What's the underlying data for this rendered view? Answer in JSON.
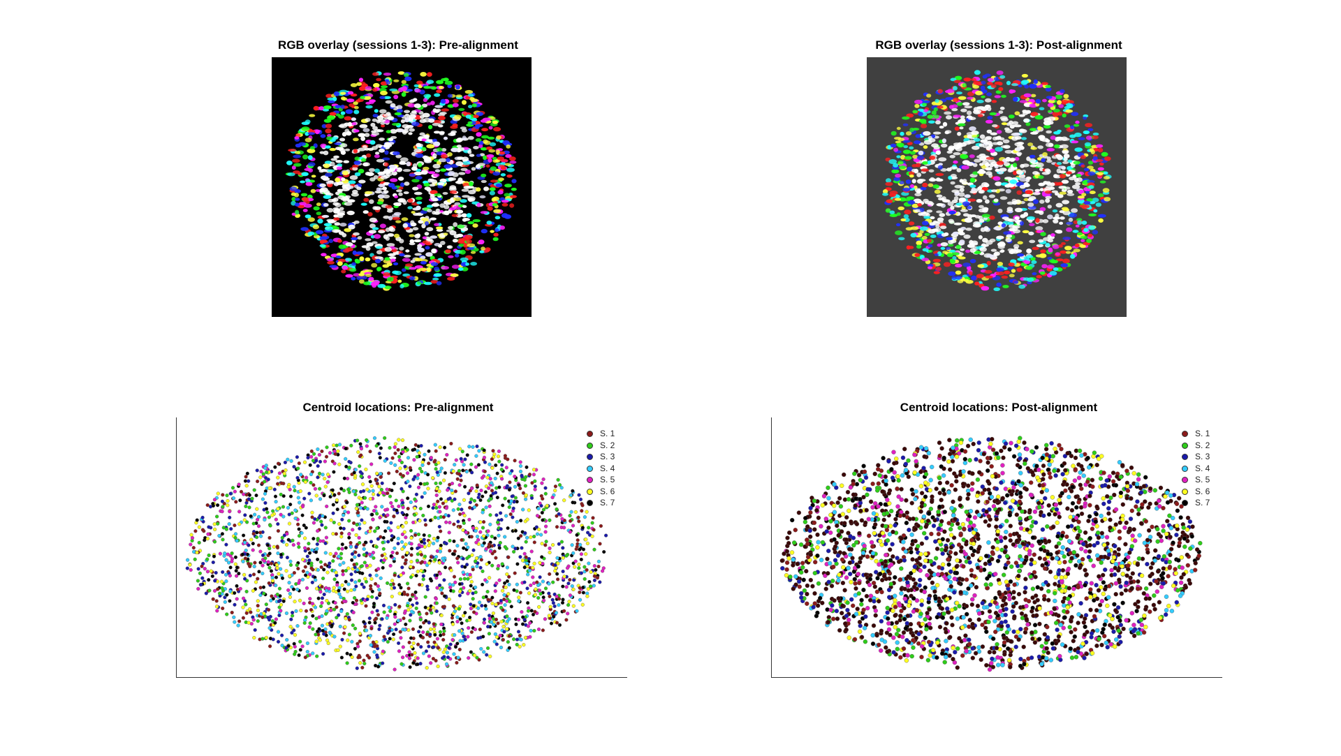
{
  "panels": {
    "rgb_pre_title": "RGB overlay (sessions 1-3): Pre-alignment",
    "rgb_post_title": "RGB overlay (sessions 1-3): Post-alignment",
    "centroid_pre_title": "Centroid locations: Pre-alignment",
    "centroid_post_title": "Centroid locations: Post-alignment"
  },
  "colors": {
    "rgb_pre_background": "#000000",
    "rgb_post_background": "#404040",
    "session_colors": [
      "#8b1a1a",
      "#2ecc1a",
      "#1a1aaa",
      "#33ccff",
      "#e020c0",
      "#ffff20",
      "#000000"
    ]
  },
  "legend": {
    "items": [
      "S. 1",
      "S. 2",
      "S. 3",
      "S. 4",
      "S. 5",
      "S. 6",
      "S. 7"
    ]
  },
  "chart_data": [
    {
      "type": "image",
      "title": "RGB overlay (sessions 1-3): Pre-alignment",
      "channels": [
        "red",
        "green",
        "blue"
      ],
      "background": "#000000"
    },
    {
      "type": "image",
      "title": "RGB overlay (sessions 1-3): Post-alignment",
      "channels": [
        "red",
        "green",
        "blue"
      ],
      "background": "#404040"
    },
    {
      "type": "scatter",
      "title": "Centroid locations: Pre-alignment",
      "series": [
        {
          "name": "S. 1"
        },
        {
          "name": "S. 2"
        },
        {
          "name": "S. 3"
        },
        {
          "name": "S. 4"
        },
        {
          "name": "S. 5"
        },
        {
          "name": "S. 6"
        },
        {
          "name": "S. 7"
        }
      ],
      "legend_position": "top-right",
      "grid": false
    },
    {
      "type": "scatter",
      "title": "Centroid locations: Post-alignment",
      "series": [
        {
          "name": "S. 1"
        },
        {
          "name": "S. 2"
        },
        {
          "name": "S. 3"
        },
        {
          "name": "S. 4"
        },
        {
          "name": "S. 5"
        },
        {
          "name": "S. 6"
        },
        {
          "name": "S. 7"
        }
      ],
      "legend_position": "top-right",
      "grid": false
    }
  ]
}
